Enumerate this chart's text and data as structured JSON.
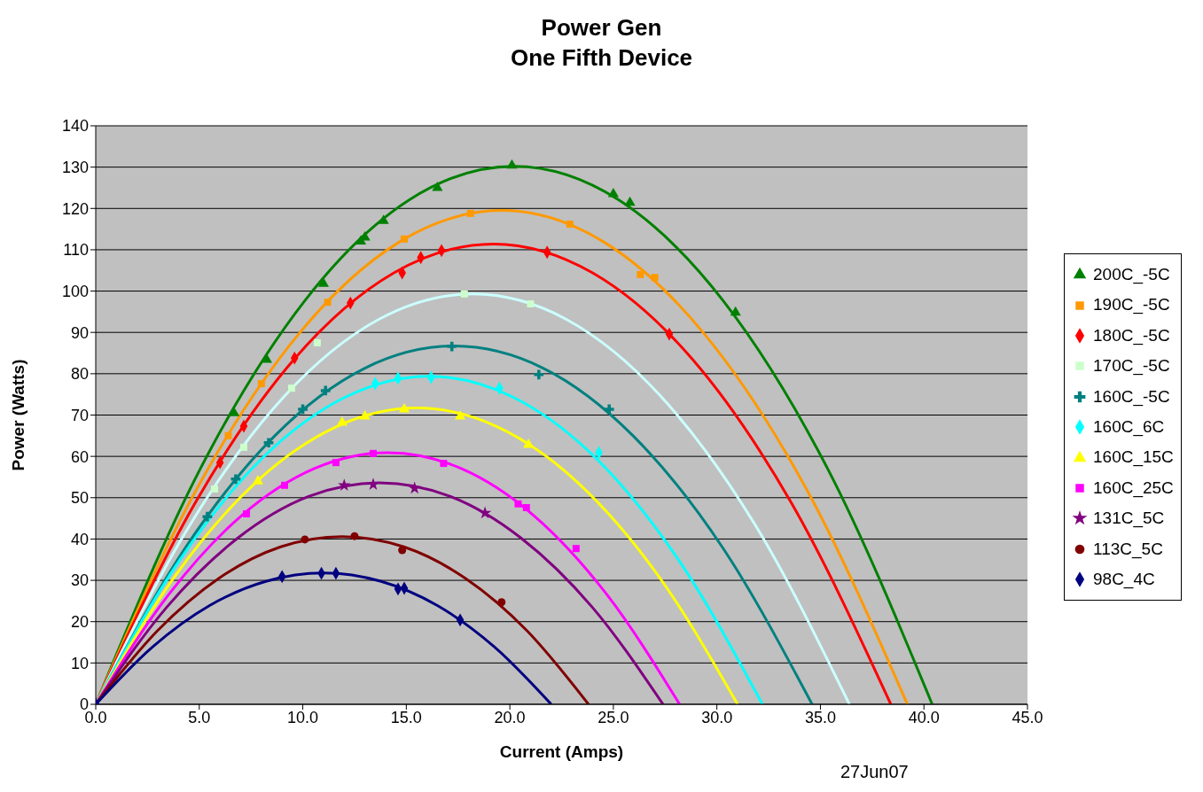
{
  "chart_data": {
    "type": "scatter",
    "title": "Power Gen",
    "subtitle": "One Fifth Device",
    "xlabel": "Current (Amps)",
    "ylabel": "Power (Watts)",
    "annotations": [
      "27Jun07"
    ],
    "xlim": [
      0,
      45
    ],
    "xticks": [
      {
        "value": 0,
        "label": "0.0"
      },
      {
        "value": 5,
        "label": "5.0"
      },
      {
        "value": 10,
        "label": "10.0"
      },
      {
        "value": 15,
        "label": "15.0"
      },
      {
        "value": 20,
        "label": "20.0"
      },
      {
        "value": 25,
        "label": "25.0"
      },
      {
        "value": 30,
        "label": "30.0"
      },
      {
        "value": 35,
        "label": "35.0"
      },
      {
        "value": 40,
        "label": "40.0"
      },
      {
        "value": 45,
        "label": "45.0"
      }
    ],
    "ylim": [
      0,
      140
    ],
    "yticks": [
      0,
      10,
      20,
      30,
      40,
      50,
      60,
      70,
      80,
      90,
      100,
      110,
      120,
      130,
      140
    ],
    "grid": "y",
    "legend": "right",
    "series": [
      {
        "name": "200C_-5C",
        "color": "#008000",
        "marker": "triangle",
        "x": [
          6.68,
          8.26,
          11.0,
          12.8,
          13.0,
          13.9,
          16.5,
          20.1,
          25.0,
          25.8,
          30.9
        ],
        "values": [
          70.5,
          83.4,
          101.8,
          112,
          113,
          117,
          125,
          130.4,
          123.5,
          121.4,
          94.8
        ]
      },
      {
        "name": "190C_-5C",
        "color": "#ff9900",
        "marker": "square",
        "x": [
          6.4,
          8.0,
          11.2,
          14.9,
          18.1,
          22.9,
          26.3,
          27.0
        ],
        "values": [
          65,
          77.6,
          97.3,
          112.6,
          118.8,
          116.2,
          104.0,
          103.3
        ]
      },
      {
        "name": "180C_-5C",
        "color": "#ff0000",
        "marker": "diamond",
        "x": [
          6.0,
          7.15,
          9.6,
          12.3,
          14.8,
          15.7,
          16.7,
          21.8,
          27.7
        ],
        "values": [
          58.5,
          67.3,
          83.8,
          97.1,
          104.4,
          108.1,
          109.8,
          109.4,
          89.6
        ]
      },
      {
        "name": "170C_-5C",
        "color": "#ccffcc",
        "marker": "square",
        "x": [
          5.74,
          7.15,
          9.46,
          10.7,
          17.8,
          21.0
        ],
        "values": [
          52.1,
          62.2,
          76.5,
          87.5,
          99.3,
          96.9
        ]
      },
      {
        "name": "160C_-5C",
        "color": "#008080",
        "marker": "cross",
        "x": [
          5.39,
          6.76,
          8.35,
          10.0,
          11.1,
          17.2,
          21.4,
          24.8
        ],
        "values": [
          45.4,
          54.5,
          63.3,
          71.4,
          75.9,
          86.6,
          79.8,
          71.4
        ]
      },
      {
        "name": "160C_6C",
        "color": "#00ffff",
        "marker": "diamond",
        "x": [
          13.5,
          14.6,
          16.2,
          19.5,
          24.3
        ],
        "values": [
          77.6,
          78.9,
          79.1,
          76.5,
          60.9
        ]
      },
      {
        "name": "160C_15C",
        "color": "#ffff00",
        "marker": "triangle",
        "x": [
          7.83,
          11.9,
          13.0,
          14.9,
          17.6,
          20.9
        ],
        "values": [
          54.0,
          68.2,
          69.7,
          71.4,
          69.7,
          62.8
        ]
      },
      {
        "name": "160C_25C",
        "color": "#ff00ff",
        "marker": "square",
        "x": [
          7.28,
          9.12,
          11.6,
          13.4,
          16.8,
          20.4,
          20.8,
          23.2
        ],
        "values": [
          46.1,
          53.0,
          58.5,
          60.7,
          58.3,
          48.5,
          47.6,
          37.7
        ]
      },
      {
        "name": "131C_5C",
        "color": "#800080",
        "marker": "star",
        "x": [
          12.0,
          13.4,
          15.4,
          18.8
        ],
        "values": [
          53.0,
          53.2,
          52.3,
          46.3
        ]
      },
      {
        "name": "113C_5C",
        "color": "#800000",
        "marker": "circle",
        "x": [
          10.1,
          12.5,
          14.8,
          19.6
        ],
        "values": [
          39.9,
          40.7,
          37.3,
          24.7
        ]
      },
      {
        "name": "98C_4C",
        "color": "#000080",
        "marker": "diamond",
        "x": [
          0,
          9.0,
          10.9,
          11.6,
          14.6,
          14.9,
          17.6
        ],
        "values": [
          0,
          30.9,
          31.7,
          31.7,
          27.9,
          28.1,
          20.4
        ]
      },
      {
        "type": "line",
        "color": "#008000",
        "x": [
          0,
          5.05,
          10.1,
          15.15,
          20.2,
          25.25,
          30.3,
          35.35,
          40.4
        ],
        "values": [
          0,
          57.0,
          97.7,
          122.1,
          130.2,
          122.1,
          97.7,
          57.0,
          0
        ]
      },
      {
        "type": "line",
        "color": "#ff9900",
        "x": [
          0,
          4.9,
          9.8,
          14.7,
          19.6,
          24.5,
          29.4,
          34.3,
          39.2
        ],
        "values": [
          0,
          52.3,
          89.6,
          112.0,
          119.5,
          112.0,
          89.6,
          52.3,
          0
        ]
      },
      {
        "type": "line",
        "color": "#ff0000",
        "x": [
          0,
          4.8,
          9.6,
          14.4,
          19.2,
          24,
          28.8,
          33.6,
          38.4
        ],
        "values": [
          0,
          48.7,
          83.6,
          104.4,
          111.4,
          104.4,
          83.6,
          48.7,
          0
        ]
      },
      {
        "type": "line",
        "color": "#ccffff",
        "x": [
          0,
          4.55,
          9.1,
          13.65,
          18.2,
          22.75,
          27.3,
          31.85,
          36.4
        ],
        "values": [
          0,
          43.4,
          74.5,
          93.1,
          99.3,
          93.1,
          74.5,
          43.4,
          0
        ]
      },
      {
        "type": "line",
        "color": "#008080",
        "x": [
          0,
          4.33,
          8.65,
          12.98,
          17.3,
          21.63,
          25.95,
          30.28,
          34.6
        ],
        "values": [
          0,
          37.9,
          65.0,
          81.3,
          86.7,
          81.3,
          65.0,
          37.9,
          0
        ]
      },
      {
        "type": "line",
        "color": "#00ffff",
        "x": [
          0,
          4.03,
          8.05,
          12.08,
          16.1,
          20.13,
          24.15,
          28.18,
          32.2
        ],
        "values": [
          0,
          34.7,
          59.6,
          74.4,
          79.4,
          74.4,
          59.6,
          34.7,
          0
        ]
      },
      {
        "type": "line",
        "color": "#ffff00",
        "x": [
          0,
          3.88,
          7.75,
          11.63,
          15.5,
          19.38,
          23.25,
          27.13,
          31
        ],
        "values": [
          0,
          31.4,
          53.8,
          67.2,
          71.7,
          67.2,
          53.8,
          31.4,
          0
        ]
      },
      {
        "type": "line",
        "color": "#ff00ff",
        "x": [
          0,
          3.53,
          7.05,
          10.58,
          14.1,
          17.63,
          21.15,
          24.68,
          28.2
        ],
        "values": [
          0,
          26.6,
          45.7,
          57.1,
          60.9,
          57.1,
          45.7,
          26.6,
          0
        ]
      },
      {
        "type": "line",
        "color": "#800080",
        "x": [
          0,
          3.43,
          6.85,
          10.28,
          13.7,
          17.13,
          20.55,
          23.98,
          27.4
        ],
        "values": [
          0,
          23.5,
          40.2,
          50.3,
          53.6,
          50.3,
          40.2,
          23.5,
          0
        ]
      },
      {
        "type": "line",
        "color": "#800000",
        "x": [
          0,
          2.98,
          5.95,
          8.93,
          11.9,
          14.88,
          17.85,
          20.83,
          23.8
        ],
        "values": [
          0,
          17.8,
          30.5,
          38.1,
          40.6,
          38.1,
          30.5,
          17.8,
          0
        ]
      },
      {
        "type": "line",
        "color": "#000080",
        "x": [
          0,
          2.75,
          5.5,
          8.25,
          11,
          13.75,
          16.5,
          19.25,
          22
        ],
        "values": [
          0,
          13.9,
          23.9,
          29.8,
          31.8,
          29.8,
          23.9,
          13.9,
          0
        ]
      }
    ]
  }
}
